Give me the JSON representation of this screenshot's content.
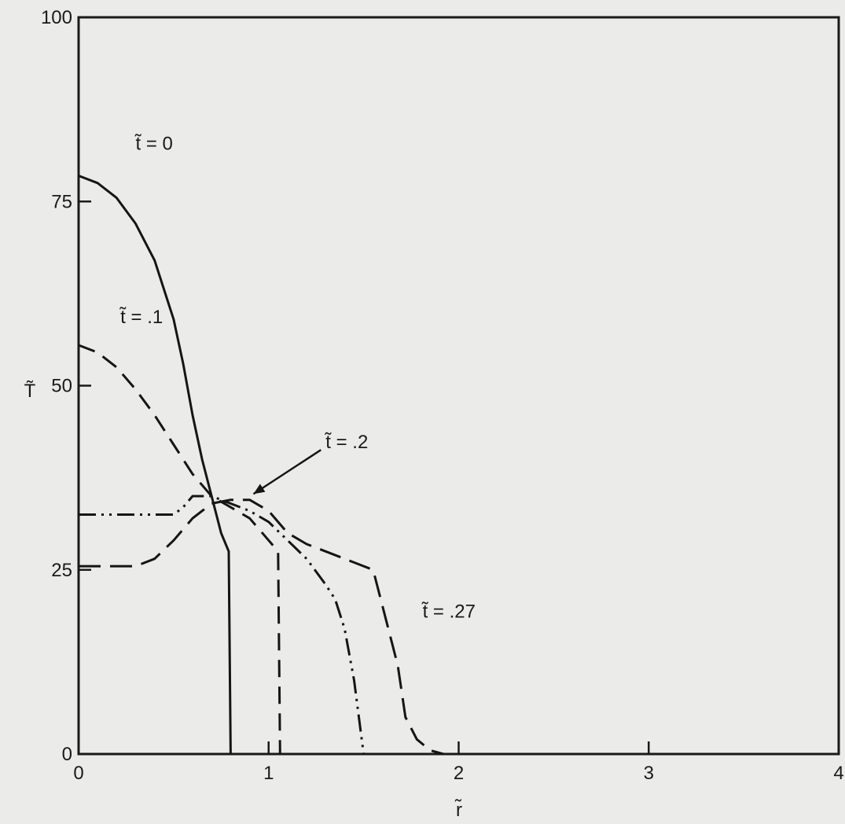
{
  "chart_data": {
    "type": "line",
    "title": "",
    "xlabel": "r̃",
    "ylabel": "T̃",
    "xlim": [
      0,
      4
    ],
    "ylim": [
      0,
      100
    ],
    "xticks": [
      0,
      1,
      2,
      3,
      4
    ],
    "yticks": [
      0,
      25,
      50,
      75,
      100
    ],
    "xtick_labels": [
      "0",
      "1",
      "2",
      "3",
      "4"
    ],
    "ytick_labels": [
      "0",
      "25",
      "50",
      "75",
      "100"
    ],
    "grid": false,
    "series": [
      {
        "name": "t̃ = 0",
        "line_style": "solid",
        "points": [
          [
            0,
            78.5
          ],
          [
            0.1,
            77.5
          ],
          [
            0.2,
            75.5
          ],
          [
            0.3,
            72
          ],
          [
            0.4,
            67
          ],
          [
            0.5,
            59
          ],
          [
            0.55,
            53
          ],
          [
            0.6,
            46
          ],
          [
            0.65,
            40
          ],
          [
            0.7,
            35
          ],
          [
            0.75,
            30
          ],
          [
            0.79,
            27.5
          ],
          [
            0.8,
            0
          ]
        ]
      },
      {
        "name": "t̃ = .1",
        "line_style": "dashed",
        "points": [
          [
            0,
            55.5
          ],
          [
            0.1,
            54.5
          ],
          [
            0.2,
            52.5
          ],
          [
            0.3,
            49.5
          ],
          [
            0.4,
            46
          ],
          [
            0.5,
            42
          ],
          [
            0.6,
            38
          ],
          [
            0.7,
            35
          ],
          [
            0.8,
            33.5
          ],
          [
            0.9,
            32
          ],
          [
            0.95,
            30.5
          ],
          [
            1.0,
            29
          ],
          [
            1.05,
            27.5
          ],
          [
            1.06,
            0
          ]
        ]
      },
      {
        "name": "t̃ = .2",
        "line_style": "dash-dot-dot",
        "points": [
          [
            0,
            32.5
          ],
          [
            0.2,
            32.5
          ],
          [
            0.5,
            32.5
          ],
          [
            0.55,
            33.5
          ],
          [
            0.6,
            35
          ],
          [
            0.7,
            35
          ],
          [
            0.8,
            34
          ],
          [
            0.9,
            33
          ],
          [
            1.0,
            31.5
          ],
          [
            1.1,
            29
          ],
          [
            1.2,
            26.5
          ],
          [
            1.3,
            23
          ],
          [
            1.35,
            21
          ],
          [
            1.4,
            17
          ],
          [
            1.45,
            10
          ],
          [
            1.5,
            0
          ]
        ]
      },
      {
        "name": "t̃ = .27",
        "line_style": "long-dashed",
        "points": [
          [
            0,
            25.5
          ],
          [
            0.3,
            25.5
          ],
          [
            0.4,
            26.5
          ],
          [
            0.5,
            29
          ],
          [
            0.6,
            32
          ],
          [
            0.7,
            34
          ],
          [
            0.8,
            34.5
          ],
          [
            0.9,
            34.5
          ],
          [
            1.0,
            33
          ],
          [
            1.1,
            30
          ],
          [
            1.2,
            28.5
          ],
          [
            1.3,
            27.5
          ],
          [
            1.45,
            26
          ],
          [
            1.55,
            25
          ],
          [
            1.6,
            20
          ],
          [
            1.68,
            12
          ],
          [
            1.72,
            5
          ],
          [
            1.78,
            2
          ],
          [
            1.85,
            0.5
          ],
          [
            1.92,
            0
          ]
        ]
      }
    ],
    "annotations": [
      {
        "text": "t̃ = 0",
        "series_index": 0,
        "anchor": [
          0.3,
          82
        ]
      },
      {
        "text": "t̃ = .1",
        "series_index": 1,
        "anchor": [
          0.22,
          58.5
        ]
      },
      {
        "text": "t̃ = .2",
        "series_index": 2,
        "anchor": [
          1.3,
          41.5
        ],
        "arrow_to": [
          0.92,
          35.3
        ]
      },
      {
        "text": "t̃ = .27",
        "series_index": 3,
        "anchor": [
          1.81,
          18.5
        ]
      }
    ]
  }
}
